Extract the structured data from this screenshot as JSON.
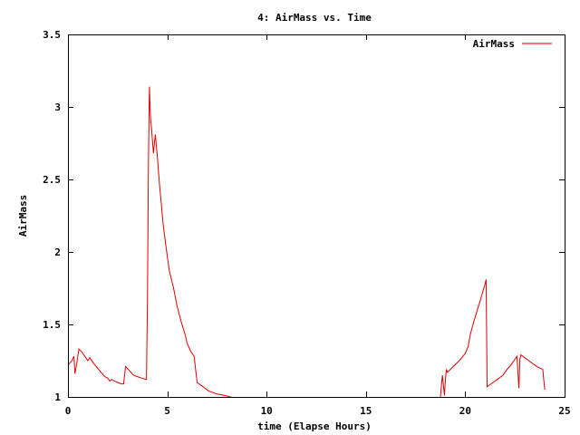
{
  "chart_data": {
    "type": "line",
    "title": "4: AirMass vs. Time",
    "xlabel": "time (Elapse Hours)",
    "ylabel": "AirMass",
    "xlim": [
      0,
      25
    ],
    "ylim": [
      1,
      3.5
    ],
    "xticks": [
      0,
      5,
      10,
      15,
      20,
      25
    ],
    "yticks": [
      1,
      1.5,
      2,
      2.5,
      3,
      3.5
    ],
    "xtick_labels": [
      "0",
      "5",
      "10",
      "15",
      "20",
      "25"
    ],
    "ytick_labels": [
      "1",
      "1.5",
      "2",
      "2.5",
      "3",
      "3.5"
    ],
    "grid": false,
    "legend": "top-right",
    "colors": {
      "series": "#e00000",
      "axes": "#000000",
      "background": "#ffffff"
    },
    "series": [
      {
        "name": "AirMass",
        "segments": [
          [
            [
              0.0,
              1.22
            ],
            [
              0.2,
              1.25
            ],
            [
              0.3,
              1.28
            ],
            [
              0.35,
              1.16
            ],
            [
              0.45,
              1.24
            ],
            [
              0.55,
              1.33
            ],
            [
              0.7,
              1.31
            ],
            [
              0.9,
              1.27
            ],
            [
              1.0,
              1.25
            ],
            [
              1.1,
              1.27
            ],
            [
              1.3,
              1.23
            ],
            [
              1.6,
              1.18
            ],
            [
              1.85,
              1.14
            ],
            [
              2.0,
              1.13
            ],
            [
              2.1,
              1.11
            ],
            [
              2.2,
              1.12
            ],
            [
              2.5,
              1.1
            ],
            [
              2.7,
              1.09
            ],
            [
              2.8,
              1.09
            ],
            [
              2.9,
              1.21
            ],
            [
              3.1,
              1.18
            ],
            [
              3.3,
              1.15
            ],
            [
              3.5,
              1.14
            ],
            [
              3.7,
              1.13
            ],
            [
              3.95,
              1.12
            ],
            [
              4.0,
              1.65
            ],
            [
              4.05,
              2.63
            ],
            [
              4.1,
              3.14
            ],
            [
              4.15,
              2.93
            ],
            [
              4.2,
              2.86
            ],
            [
              4.3,
              2.68
            ],
            [
              4.4,
              2.81
            ],
            [
              4.5,
              2.66
            ],
            [
              4.6,
              2.48
            ],
            [
              4.8,
              2.18
            ],
            [
              5.0,
              1.97
            ],
            [
              5.1,
              1.87
            ],
            [
              5.3,
              1.76
            ],
            [
              5.5,
              1.62
            ],
            [
              5.7,
              1.52
            ],
            [
              5.9,
              1.43
            ],
            [
              6.0,
              1.37
            ],
            [
              6.2,
              1.31
            ],
            [
              6.35,
              1.28
            ],
            [
              6.5,
              1.1
            ],
            [
              6.8,
              1.07
            ],
            [
              7.1,
              1.04
            ],
            [
              7.5,
              1.02
            ],
            [
              7.9,
              1.01
            ],
            [
              8.2,
              1.0
            ]
          ],
          [
            [
              18.75,
              1.0
            ],
            [
              18.8,
              1.08
            ],
            [
              18.85,
              1.15
            ],
            [
              18.95,
              1.01
            ],
            [
              19.0,
              1.12
            ],
            [
              19.05,
              1.19
            ],
            [
              19.1,
              1.17
            ],
            [
              19.4,
              1.21
            ],
            [
              19.7,
              1.25
            ],
            [
              20.0,
              1.3
            ],
            [
              20.15,
              1.35
            ],
            [
              20.25,
              1.43
            ],
            [
              20.45,
              1.53
            ],
            [
              20.7,
              1.64
            ],
            [
              21.0,
              1.78
            ],
            [
              21.05,
              1.81
            ],
            [
              21.1,
              1.07
            ],
            [
              21.3,
              1.09
            ],
            [
              21.6,
              1.12
            ],
            [
              21.9,
              1.15
            ],
            [
              22.1,
              1.19
            ],
            [
              22.3,
              1.22
            ],
            [
              22.5,
              1.26
            ],
            [
              22.6,
              1.28
            ],
            [
              22.7,
              1.06
            ],
            [
              22.75,
              1.26
            ],
            [
              22.8,
              1.29
            ],
            [
              23.0,
              1.27
            ],
            [
              23.3,
              1.24
            ],
            [
              23.6,
              1.21
            ],
            [
              23.9,
              1.19
            ],
            [
              24.0,
              1.05
            ]
          ]
        ]
      }
    ]
  }
}
